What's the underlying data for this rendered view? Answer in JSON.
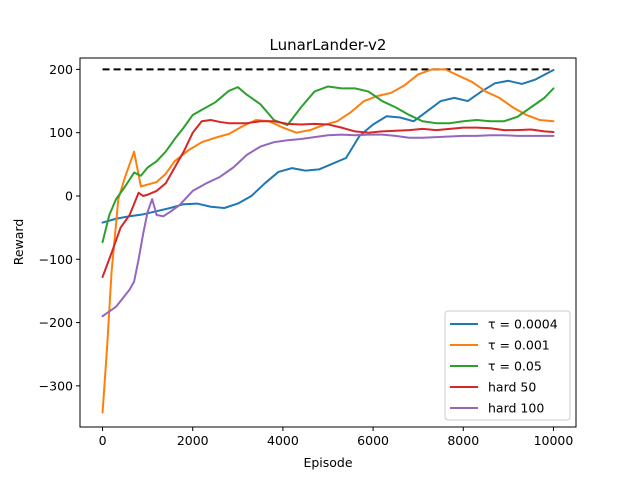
{
  "chart_data": {
    "type": "line",
    "title": "LunarLander-v2",
    "xlabel": "Episode",
    "ylabel": "Reward",
    "xlim": [
      -500,
      10500
    ],
    "ylim": [
      -365,
      218
    ],
    "xticks": [
      0,
      2000,
      4000,
      6000,
      8000,
      10000
    ],
    "xtick_labels": [
      "0",
      "2000",
      "4000",
      "6000",
      "8000",
      "10000"
    ],
    "yticks": [
      -300,
      -200,
      -100,
      0,
      100,
      200
    ],
    "ytick_labels": [
      "−300",
      "−200",
      "−100",
      "0",
      "100",
      "200"
    ],
    "grid": false,
    "legend_position": "lower-right",
    "reference_line": {
      "y": 200,
      "x_start": 0,
      "x_end": 10000,
      "color": "#000000",
      "style": "dashed"
    },
    "series": [
      {
        "name": "τ = 0.0004",
        "color": "#1f77b4",
        "x": [
          0,
          300,
          600,
          900,
          1200,
          1500,
          1800,
          2100,
          2400,
          2700,
          3000,
          3300,
          3600,
          3900,
          4200,
          4500,
          4800,
          5100,
          5400,
          5700,
          6000,
          6300,
          6600,
          6900,
          7200,
          7500,
          7800,
          8100,
          8400,
          8700,
          9000,
          9300,
          9600,
          10000
        ],
        "y": [
          -42,
          -36,
          -32,
          -29,
          -24,
          -19,
          -13,
          -12,
          -17,
          -19,
          -12,
          0,
          20,
          38,
          44,
          40,
          42,
          51,
          60,
          95,
          113,
          126,
          124,
          118,
          134,
          150,
          155,
          150,
          165,
          178,
          182,
          177,
          184,
          199
        ]
      },
      {
        "name": "τ = 0.001",
        "color": "#ff7f0e",
        "x": [
          0,
          100,
          200,
          350,
          500,
          700,
          850,
          1000,
          1200,
          1400,
          1600,
          1900,
          2200,
          2500,
          2800,
          3100,
          3400,
          3700,
          4000,
          4300,
          4600,
          4900,
          5200,
          5500,
          5800,
          6100,
          6400,
          6700,
          7000,
          7300,
          7600,
          7900,
          8200,
          8500,
          8800,
          9100,
          9400,
          9700,
          10000
        ],
        "y": [
          -342,
          -240,
          -120,
          -5,
          30,
          70,
          15,
          18,
          22,
          35,
          55,
          72,
          85,
          92,
          98,
          110,
          120,
          118,
          108,
          100,
          104,
          112,
          118,
          132,
          150,
          158,
          163,
          175,
          192,
          200,
          200,
          190,
          180,
          165,
          155,
          140,
          128,
          120,
          118
        ]
      },
      {
        "name": "τ = 0.05",
        "color": "#2ca02c",
        "x": [
          0,
          150,
          300,
          500,
          700,
          850,
          1000,
          1200,
          1400,
          1600,
          1800,
          2000,
          2200,
          2500,
          2800,
          3000,
          3200,
          3500,
          3800,
          4100,
          4400,
          4700,
          5000,
          5300,
          5600,
          5900,
          6200,
          6500,
          6800,
          7100,
          7400,
          7700,
          8000,
          8300,
          8600,
          8900,
          9200,
          9500,
          9800,
          10000
        ],
        "y": [
          -73,
          -30,
          -5,
          15,
          37,
          32,
          45,
          55,
          70,
          90,
          108,
          128,
          136,
          148,
          166,
          172,
          160,
          145,
          120,
          112,
          140,
          165,
          173,
          170,
          170,
          165,
          150,
          140,
          128,
          118,
          115,
          115,
          118,
          120,
          118,
          118,
          125,
          140,
          155,
          170
        ]
      },
      {
        "name": "hard 50",
        "color": "#d62728",
        "x": [
          0,
          200,
          400,
          600,
          800,
          900,
          1000,
          1200,
          1400,
          1600,
          1800,
          2000,
          2200,
          2400,
          2600,
          2800,
          3000,
          3200,
          3500,
          3800,
          4100,
          4400,
          4700,
          5000,
          5300,
          5600,
          5900,
          6200,
          6500,
          6800,
          7100,
          7400,
          7700,
          8000,
          8300,
          8600,
          8900,
          9200,
          9500,
          9800,
          10000
        ],
        "y": [
          -128,
          -90,
          -50,
          -30,
          5,
          0,
          2,
          8,
          20,
          45,
          70,
          100,
          118,
          120,
          117,
          115,
          115,
          115,
          118,
          118,
          114,
          113,
          114,
          113,
          108,
          102,
          100,
          102,
          103,
          104,
          106,
          104,
          106,
          108,
          108,
          107,
          104,
          104,
          105,
          102,
          101
        ]
      },
      {
        "name": "hard 100",
        "color": "#9467bd",
        "x": [
          0,
          300,
          600,
          700,
          800,
          900,
          1000,
          1100,
          1200,
          1350,
          1500,
          1700,
          2000,
          2300,
          2600,
          2900,
          3200,
          3500,
          3800,
          4100,
          4400,
          4700,
          5000,
          5300,
          5600,
          5900,
          6200,
          6500,
          6800,
          7100,
          7400,
          7700,
          8000,
          8300,
          8600,
          8900,
          9200,
          9500,
          9800,
          10000
        ],
        "y": [
          -190,
          -175,
          -148,
          -135,
          -100,
          -60,
          -25,
          -5,
          -30,
          -32,
          -25,
          -15,
          8,
          20,
          30,
          45,
          65,
          78,
          85,
          88,
          90,
          93,
          96,
          97,
          96,
          97,
          97,
          95,
          92,
          92,
          93,
          94,
          95,
          95,
          96,
          96,
          95,
          95,
          95,
          95
        ]
      }
    ]
  }
}
